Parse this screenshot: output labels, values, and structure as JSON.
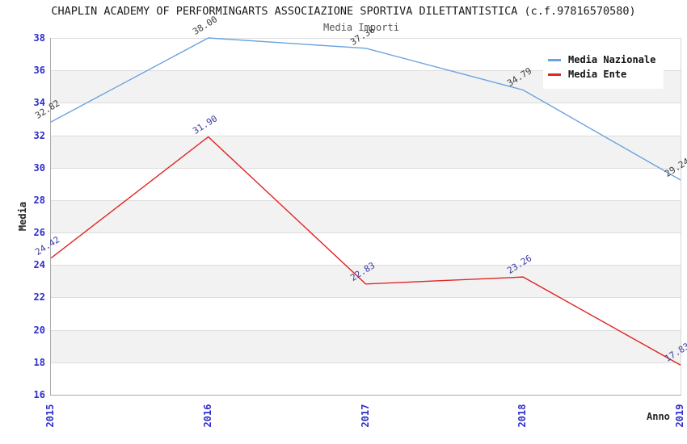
{
  "header": {
    "title": "CHAPLIN ACADEMY OF PERFORMINGARTS ASSOCIAZIONE SPORTIVA DILETTANTISTICA (c.f.97816570580)",
    "subtitle": "Media Importi"
  },
  "axes": {
    "ylabel": "Media",
    "xlabel": "Anno"
  },
  "colors": {
    "tick_label": "#2d2dcc",
    "grid_line": "#dddddd",
    "band_gray": "#f2f2f2",
    "band_white": "#ffffff",
    "axis_line": "#aaaaaa",
    "title_text": "#1a1a1a",
    "subtitle_text": "#555555"
  },
  "chart_data": {
    "type": "line",
    "title": "CHAPLIN ACADEMY OF PERFORMINGARTS ASSOCIAZIONE SPORTIVA DILETTANTISTICA (c.f.97816570580)",
    "subtitle": "Media Importi",
    "xlabel": "Anno",
    "ylabel": "Media",
    "x": [
      "2015",
      "2016",
      "2017",
      "2018",
      "2019"
    ],
    "series": [
      {
        "name": "Media Nazionale",
        "color": "#6ba3e0",
        "label_color": "#3a3a3a",
        "values": [
          32.82,
          38.0,
          37.36,
          34.79,
          29.24
        ]
      },
      {
        "name": "Media Ente",
        "color": "#e02525",
        "label_color": "#3a3aa0",
        "values": [
          24.42,
          31.9,
          22.83,
          23.26,
          17.83
        ]
      }
    ],
    "ylim": [
      16,
      38
    ],
    "ytick_step": 2,
    "grid": "horizontal-bands",
    "legend_position": "top-right",
    "point_labels": "two-decimals"
  }
}
